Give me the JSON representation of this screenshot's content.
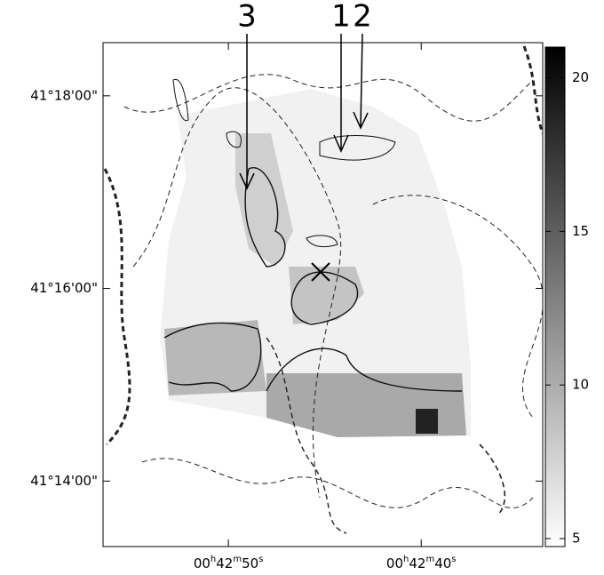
{
  "chart_data": {
    "type": "image",
    "annotations": [
      "3",
      "1",
      "2"
    ],
    "xlim": [
      56.5,
      33.7
    ],
    "xticks": [
      {
        "value": 50,
        "label": "00h42m50s"
      },
      {
        "value": 40,
        "label": "00h42m40s"
      }
    ],
    "ylim": [
      41.222,
      41.3092
    ],
    "yticks": [
      {
        "value": 41.3,
        "label": "41°18'00\""
      },
      {
        "value": 41.26667,
        "label": "41°16'00\""
      },
      {
        "value": 41.23333,
        "label": "41°14'00\""
      }
    ],
    "colorbar": {
      "lim": [
        4.74,
        21.0
      ],
      "ticks": [
        5,
        10,
        15,
        20
      ],
      "colors": [
        "#ffffff",
        "#000000"
      ]
    }
  }
}
